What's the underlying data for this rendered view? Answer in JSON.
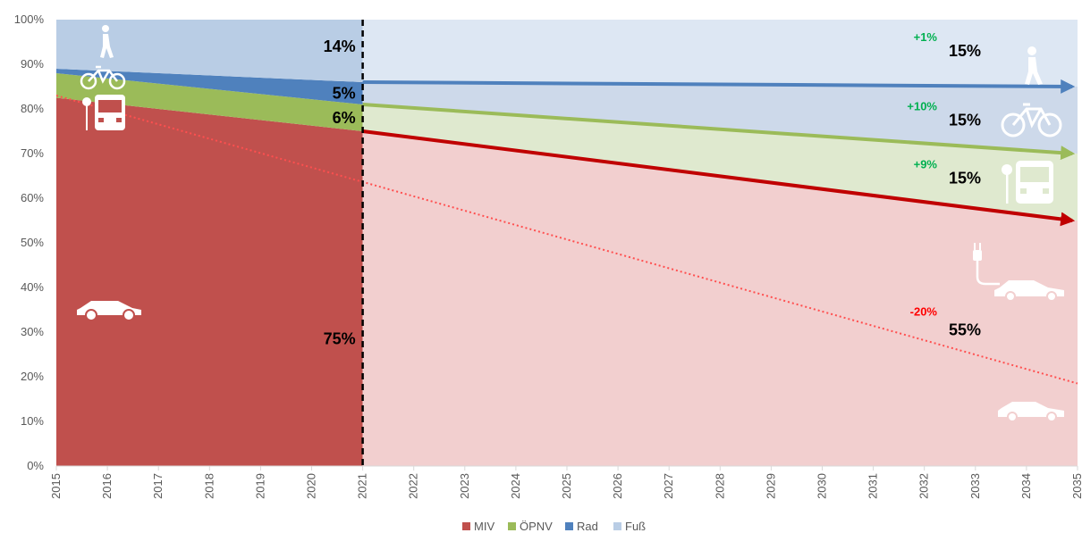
{
  "chart_data": {
    "type": "area",
    "x_range": [
      2015,
      2035
    ],
    "ylim": [
      0,
      100
    ],
    "y_ticks": [
      "0%",
      "10%",
      "20%",
      "30%",
      "40%",
      "50%",
      "60%",
      "70%",
      "80%",
      "90%",
      "100%"
    ],
    "x_ticks": [
      "2015",
      "2016",
      "2017",
      "2018",
      "2019",
      "2020",
      "2021",
      "2022",
      "2023",
      "2024",
      "2025",
      "2026",
      "2027",
      "2028",
      "2029",
      "2030",
      "2031",
      "2032",
      "2033",
      "2034",
      "2035"
    ],
    "divider_year": 2021,
    "colors": {
      "MIV": "#c0504d",
      "ÖPNV": "#9bbb59",
      "Rad": "#4f81bd",
      "Fuß": "#b9cde5",
      "MIV_light": "#f2cfcf",
      "ÖPNV_light": "#dfe9cf",
      "Rad_light": "#cdd9ea",
      "Fuß_light": "#dde7f3",
      "change_pos": "#00b050",
      "change_neg": "#ff0000"
    },
    "historic": {
      "x": [
        2015,
        2021
      ],
      "MIV": [
        82.5,
        75
      ],
      "ÖPNV": [
        5.5,
        6
      ],
      "Rad": [
        1,
        5
      ],
      "Fuß": [
        11,
        14
      ]
    },
    "targets": {
      "x": [
        2021,
        2035
      ],
      "MIV": [
        75,
        55
      ],
      "ÖPNV": [
        6,
        15
      ],
      "Rad": [
        5,
        15
      ],
      "Fuß": [
        14,
        15
      ]
    },
    "ev_line": {
      "x": [
        2015,
        2035
      ],
      "y": [
        83,
        18.5
      ]
    },
    "labels_2021": [
      {
        "text": "14%",
        "y": 94
      },
      {
        "text": "5%",
        "y": 83.5
      },
      {
        "text": "6%",
        "y": 78
      },
      {
        "text": "75%",
        "y": 28.5
      }
    ],
    "labels_2035": [
      {
        "text": "15%",
        "y": 93
      },
      {
        "text": "15%",
        "y": 77.5
      },
      {
        "text": "15%",
        "y": 64.5
      },
      {
        "text": "55%",
        "y": 30.5
      }
    ],
    "changes": [
      {
        "text": "+1%",
        "y": 96,
        "sign": "pos"
      },
      {
        "text": "+10%",
        "y": 80.5,
        "sign": "pos"
      },
      {
        "text": "+9%",
        "y": 67.5,
        "sign": "pos"
      },
      {
        "text": "-20%",
        "y": 34.5,
        "sign": "neg"
      }
    ],
    "legend": [
      "MIV",
      "ÖPNV",
      "Rad",
      "Fuß"
    ],
    "icons": [
      "pedestrian-icon",
      "bicycle-icon",
      "bus-stop-icon",
      "car-icon",
      "electric-car-icon"
    ]
  }
}
